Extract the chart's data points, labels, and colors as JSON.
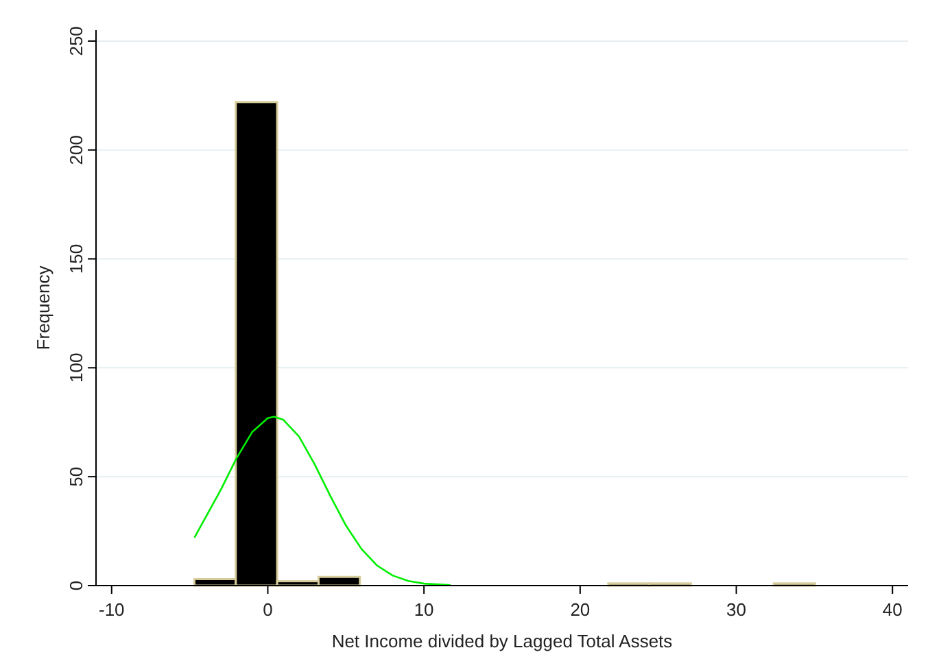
{
  "chart_data": {
    "type": "histogram",
    "xlabel": "Net Income divided by Lagged Total Assets",
    "ylabel": "Frequency",
    "bins": [
      -4.7,
      -2.05,
      0.6,
      3.25,
      5.9,
      8.55,
      11.2,
      13.85,
      16.5,
      19.15,
      21.8,
      24.45,
      27.1,
      29.75,
      32.4,
      35.05
    ],
    "values": [
      3,
      222,
      2,
      4,
      0,
      0,
      0,
      0,
      0,
      0,
      1,
      1,
      0,
      0,
      1
    ],
    "color": "#000000",
    "series": [
      {
        "type": "line",
        "color": "#00ee00",
        "x": [
          -4.7,
          -3,
          -2,
          -1,
          0,
          0.4,
          1,
          2,
          3,
          4,
          5,
          6,
          7,
          8,
          9,
          10,
          11.7
        ],
        "values": [
          22,
          44.1,
          58.5,
          70.5,
          76.9,
          77.5,
          76.1,
          68.4,
          55.7,
          41.2,
          27.6,
          16.8,
          9.2,
          4.6,
          2.1,
          0.9,
          0.2
        ]
      }
    ],
    "xlim": [
      -11,
      41
    ],
    "xticks": [
      -10,
      0,
      10,
      20,
      30,
      40
    ],
    "ylim": [
      0,
      255
    ],
    "yticks": [
      0,
      50,
      100,
      150,
      200,
      250
    ],
    "grid": "y"
  }
}
